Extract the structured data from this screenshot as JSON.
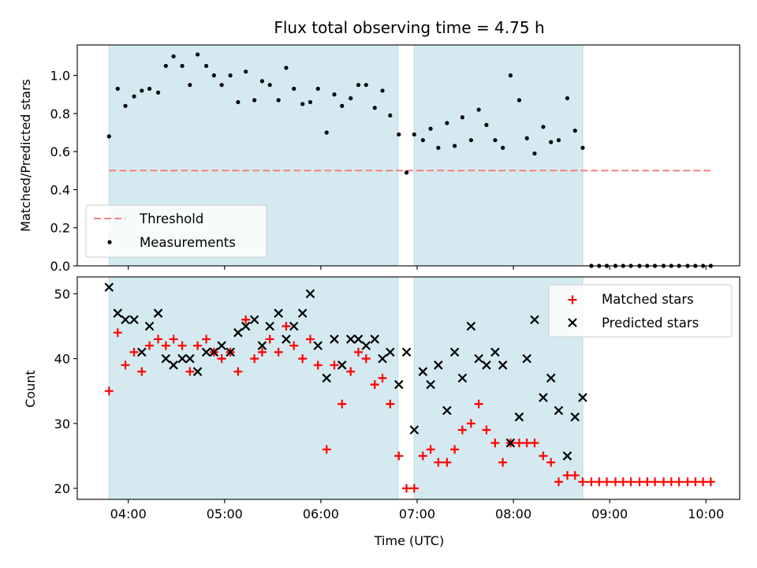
{
  "chart_data": {
    "type": "scatter",
    "title": "Flux total observing time = 4.75 h",
    "xlabel": "Time (UTC)",
    "x_unit": "hours (UTC)",
    "xlim": [
      3.47,
      10.35
    ],
    "x_ticks": [
      {
        "value": 4,
        "label": "04:00"
      },
      {
        "value": 5,
        "label": "05:00"
      },
      {
        "value": 6,
        "label": "06:00"
      },
      {
        "value": 7,
        "label": "07:00"
      },
      {
        "value": 8,
        "label": "08:00"
      },
      {
        "value": 9,
        "label": "09:00"
      },
      {
        "value": 10,
        "label": "10:00"
      }
    ],
    "observing_windows": [
      [
        3.8,
        6.8
      ],
      [
        6.97,
        8.72
      ]
    ],
    "colors": {
      "window": "#d4eaf0",
      "threshold": "#f28080",
      "measurements": "#000000",
      "matched": "#ff0000",
      "predicted": "#000000"
    },
    "panels": [
      {
        "id": "ratio",
        "ylabel": "Matched/Predicted stars",
        "ylim": [
          0,
          1.16
        ],
        "y_ticks": [
          {
            "value": 0,
            "label": "0.0"
          },
          {
            "value": 0.2,
            "label": "0.2"
          },
          {
            "value": 0.4,
            "label": "0.4"
          },
          {
            "value": 0.6,
            "label": "0.6"
          },
          {
            "value": 0.8,
            "label": "0.8"
          },
          {
            "value": 1.0,
            "label": "1.0"
          }
        ],
        "legend_position": "lower-left",
        "threshold": {
          "name": "Threshold",
          "value": 0.5,
          "x_range": [
            3.8,
            10.05
          ]
        },
        "series": [
          {
            "name": "Measurements",
            "marker": "dot",
            "x": [
              3.8,
              3.89,
              3.97,
              4.06,
              4.14,
              4.22,
              4.31,
              4.39,
              4.47,
              4.56,
              4.64,
              4.72,
              4.81,
              4.89,
              4.97,
              5.06,
              5.14,
              5.22,
              5.31,
              5.39,
              5.47,
              5.56,
              5.64,
              5.72,
              5.81,
              5.89,
              5.97,
              6.06,
              6.14,
              6.22,
              6.31,
              6.39,
              6.47,
              6.56,
              6.64,
              6.72,
              6.81,
              6.89,
              6.97,
              7.06,
              7.14,
              7.22,
              7.31,
              7.39,
              7.47,
              7.56,
              7.64,
              7.72,
              7.81,
              7.89,
              7.97,
              8.06,
              8.14,
              8.22,
              8.31,
              8.39,
              8.47,
              8.56,
              8.64,
              8.72,
              8.81,
              8.89,
              8.97,
              9.06,
              9.14,
              9.22,
              9.31,
              9.39,
              9.47,
              9.56,
              9.64,
              9.72,
              9.81,
              9.89,
              9.97,
              10.05
            ],
            "y": [
              0.68,
              0.93,
              0.84,
              0.89,
              0.92,
              0.93,
              0.91,
              1.05,
              1.1,
              1.05,
              0.95,
              1.11,
              1.05,
              1.0,
              0.95,
              1.0,
              0.86,
              1.02,
              0.87,
              0.97,
              0.95,
              0.87,
              1.04,
              0.93,
              0.85,
              0.86,
              0.93,
              0.7,
              0.9,
              0.84,
              0.88,
              0.95,
              0.95,
              0.83,
              0.92,
              0.79,
              0.69,
              0.49,
              0.69,
              0.66,
              0.72,
              0.62,
              0.75,
              0.63,
              0.78,
              0.66,
              0.82,
              0.74,
              0.66,
              0.62,
              1.0,
              0.87,
              0.67,
              0.59,
              0.73,
              0.65,
              0.66,
              0.88,
              0.71,
              0.62,
              0.0,
              0.0,
              0.0,
              0.0,
              0.0,
              0.0,
              0.0,
              0.0,
              0.0,
              0.0,
              0.0,
              0.0,
              0.0,
              0.0,
              0.0,
              0.0
            ]
          }
        ]
      },
      {
        "id": "count",
        "ylabel": "Count",
        "ylim": [
          18.3,
          52.6
        ],
        "y_ticks": [
          {
            "value": 20,
            "label": "20"
          },
          {
            "value": 30,
            "label": "30"
          },
          {
            "value": 40,
            "label": "40"
          },
          {
            "value": 50,
            "label": "50"
          }
        ],
        "legend_position": "upper-right",
        "series": [
          {
            "name": "Matched stars",
            "marker": "plus",
            "x": [
              3.8,
              3.89,
              3.97,
              4.06,
              4.14,
              4.22,
              4.31,
              4.39,
              4.47,
              4.56,
              4.64,
              4.72,
              4.81,
              4.89,
              4.97,
              5.06,
              5.14,
              5.22,
              5.31,
              5.39,
              5.47,
              5.56,
              5.64,
              5.72,
              5.81,
              5.89,
              5.97,
              6.06,
              6.14,
              6.22,
              6.31,
              6.39,
              6.47,
              6.56,
              6.64,
              6.72,
              6.81,
              6.89,
              6.97,
              7.06,
              7.14,
              7.22,
              7.31,
              7.39,
              7.47,
              7.56,
              7.64,
              7.72,
              7.81,
              7.89,
              7.97,
              8.06,
              8.14,
              8.22,
              8.31,
              8.39,
              8.47,
              8.56,
              8.64,
              8.72,
              8.81,
              8.89,
              8.97,
              9.06,
              9.14,
              9.22,
              9.31,
              9.39,
              9.47,
              9.56,
              9.64,
              9.72,
              9.81,
              9.89,
              9.97,
              10.05
            ],
            "y": [
              35,
              44,
              39,
              41,
              38,
              42,
              43,
              42,
              43,
              42,
              38,
              42,
              43,
              41,
              40,
              41,
              38,
              46,
              40,
              41,
              43,
              41,
              45,
              42,
              40,
              43,
              39,
              26,
              39,
              33,
              38,
              41,
              40,
              36,
              37,
              33,
              25,
              20,
              20,
              25,
              26,
              24,
              24,
              26,
              29,
              30,
              33,
              29,
              27,
              24,
              27,
              27,
              27,
              27,
              25,
              24,
              21,
              22,
              22,
              21,
              21,
              21,
              21,
              21,
              21,
              21,
              21,
              21,
              21,
              21,
              21,
              21,
              21,
              21,
              21,
              21
            ]
          },
          {
            "name": "Predicted stars",
            "marker": "x",
            "x": [
              3.8,
              3.89,
              3.97,
              4.06,
              4.14,
              4.22,
              4.31,
              4.39,
              4.47,
              4.56,
              4.64,
              4.72,
              4.81,
              4.89,
              4.97,
              5.06,
              5.14,
              5.22,
              5.31,
              5.39,
              5.47,
              5.56,
              5.64,
              5.72,
              5.81,
              5.89,
              5.97,
              6.06,
              6.14,
              6.22,
              6.31,
              6.39,
              6.47,
              6.56,
              6.64,
              6.72,
              6.81,
              6.89,
              6.97,
              7.06,
              7.14,
              7.22,
              7.31,
              7.39,
              7.47,
              7.56,
              7.64,
              7.72,
              7.81,
              7.89,
              7.97,
              8.06,
              8.14,
              8.22,
              8.31,
              8.39,
              8.47,
              8.56,
              8.64,
              8.72
            ],
            "y": [
              51,
              47,
              46,
              46,
              41,
              45,
              47,
              40,
              39,
              40,
              40,
              38,
              41,
              41,
              42,
              41,
              44,
              45,
              46,
              42,
              45,
              47,
              43,
              45,
              47,
              50,
              42,
              37,
              43,
              39,
              43,
              43,
              42,
              43,
              40,
              41,
              36,
              41,
              29,
              38,
              36,
              39,
              32,
              41,
              37,
              45,
              40,
              39,
              41,
              39,
              27,
              31,
              40,
              46,
              34,
              37,
              32,
              25,
              31,
              34
            ]
          }
        ]
      }
    ]
  }
}
